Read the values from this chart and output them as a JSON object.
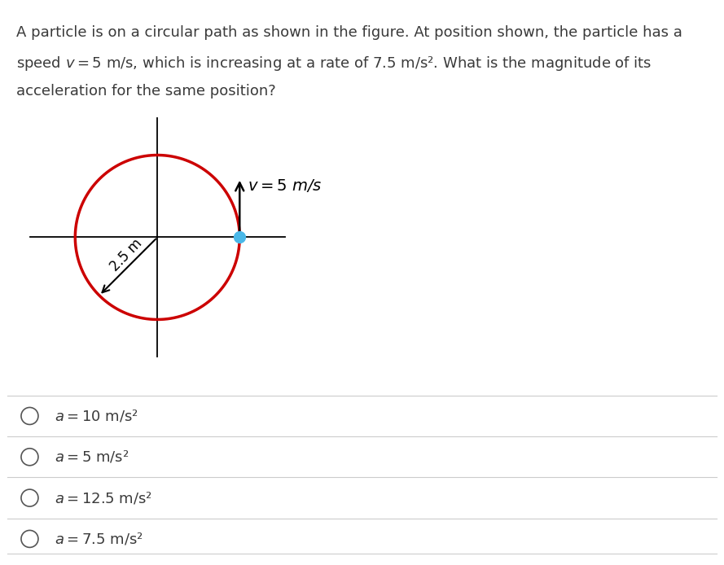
{
  "problem_lines": [
    "A particle is on a circular path as shown in the figure. At position shown, the particle has a",
    "speed $v = 5$ m/s, which is increasing at a rate of $7.5$ m/s². What is the magnitude of its",
    "acceleration for the same position?"
  ],
  "circle_color": "#cc0000",
  "circle_lw": 2.5,
  "crosshair_color": "black",
  "crosshair_lw": 1.3,
  "radius_label": "2.5 m",
  "velocity_label": "$v = 5$ m/s",
  "particle_color": "#4ab8e8",
  "particle_size": 10,
  "arrow_color": "black",
  "choices": [
    "$a = 10$ m/s²",
    "$a = 5$ m/s²",
    "$a = 12.5$ m/s²",
    "$a = 7.5$ m/s²"
  ],
  "bg_color": "white",
  "text_color": "#3a3a3a",
  "font_size_problem": 13,
  "font_size_choices": 13,
  "font_size_radius": 12,
  "font_size_velocity": 14,
  "separator_color": "#cccccc",
  "radio_color": "#555555"
}
